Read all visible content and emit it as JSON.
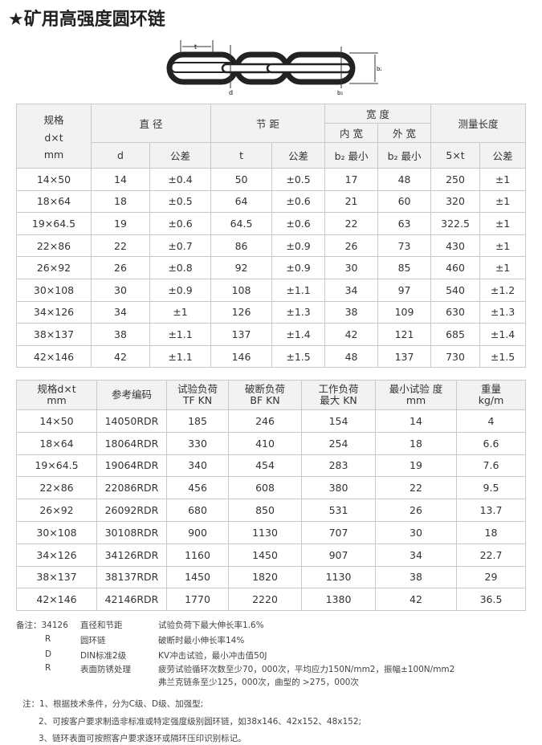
{
  "title": "★矿用高强度圆环链",
  "diagram": {
    "labels": {
      "t": "t",
      "d": "d",
      "b1": "b₁",
      "b2": "b₂"
    }
  },
  "table1": {
    "header": {
      "spec": [
        "规格",
        "d×t",
        "mm"
      ],
      "diameter": "直 径",
      "pitch": "节 距",
      "width": "宽 度",
      "inner": "内 宽",
      "outer": "外 宽",
      "measure": "测量长度",
      "sub": [
        "d",
        "公差",
        "t",
        "公差",
        "b₂ 最小",
        "b₂ 最小",
        "5×t",
        "公差"
      ]
    },
    "rows": [
      [
        "14×50",
        "14",
        "±0.4",
        "50",
        "±0.5",
        "17",
        "48",
        "250",
        "±1"
      ],
      [
        "18×64",
        "18",
        "±0.5",
        "64",
        "±0.6",
        "21",
        "60",
        "320",
        "±1"
      ],
      [
        "19×64.5",
        "19",
        "±0.6",
        "64.5",
        "±0.6",
        "22",
        "63",
        "322.5",
        "±1"
      ],
      [
        "22×86",
        "22",
        "±0.7",
        "86",
        "±0.9",
        "26",
        "73",
        "430",
        "±1"
      ],
      [
        "26×92",
        "26",
        "±0.8",
        "92",
        "±0.9",
        "30",
        "85",
        "460",
        "±1"
      ],
      [
        "30×108",
        "30",
        "±0.9",
        "108",
        "±1.1",
        "34",
        "97",
        "540",
        "±1.2"
      ],
      [
        "34×126",
        "34",
        "±1",
        "126",
        "±1.3",
        "38",
        "109",
        "630",
        "±1.3"
      ],
      [
        "38×137",
        "38",
        "±1.1",
        "137",
        "±1.4",
        "42",
        "121",
        "685",
        "±1.4"
      ],
      [
        "42×146",
        "42",
        "±1.1",
        "146",
        "±1.5",
        "48",
        "137",
        "730",
        "±1.5"
      ]
    ]
  },
  "table2": {
    "header": [
      [
        "规格d×t",
        "mm"
      ],
      [
        "参考编码"
      ],
      [
        "试验负荷",
        "TF  KN"
      ],
      [
        "破断负荷",
        "BF  KN"
      ],
      [
        "工作负荷",
        "最大 KN"
      ],
      [
        "最小试验  度",
        "mm"
      ],
      [
        "重量",
        "kg/m"
      ]
    ],
    "rows": [
      [
        "14×50",
        "14050RDR",
        "185",
        "246",
        "154",
        "14",
        "4"
      ],
      [
        "18×64",
        "18064RDR",
        "330",
        "410",
        "254",
        "18",
        "6.6"
      ],
      [
        "19×64.5",
        "19064RDR",
        "340",
        "454",
        "283",
        "19",
        "7.6"
      ],
      [
        "22×86",
        "22086RDR",
        "456",
        "608",
        "380",
        "22",
        "9.5"
      ],
      [
        "26×92",
        "26092RDR",
        "680",
        "850",
        "531",
        "26",
        "13.7"
      ],
      [
        "30×108",
        "30108RDR",
        "900",
        "1130",
        "707",
        "30",
        "18"
      ],
      [
        "34×126",
        "34126RDR",
        "1160",
        "1450",
        "907",
        "34",
        "22.7"
      ],
      [
        "38×137",
        "38137RDR",
        "1450",
        "1820",
        "1130",
        "38",
        "29"
      ],
      [
        "42×146",
        "42146RDR",
        "1770",
        "2220",
        "1380",
        "42",
        "36.5"
      ]
    ]
  },
  "remarks": [
    [
      "备注：34126",
      "直径和节距",
      "试验负荷下最大伸长率1.6%"
    ],
    [
      "R",
      "圆环链",
      "破断时最小伸长率14%"
    ],
    [
      "D",
      "DIN标准2级",
      "KV冲击试验，最小冲击值50J"
    ],
    [
      "R",
      "表面防锈处理",
      "疲劳试验循环次数至少70，000次，平均应力150N/mm2，振幅±100N/mm2"
    ],
    [
      "",
      "",
      "弗兰克链条至少125，000次，曲型的 >275，000次"
    ]
  ],
  "notes": [
    "注：1、根据技术条件，分为C级、D级、加强型;",
    "2、可按客户要求制造非标准或特定强度级别圆环链，如38x146、42x152、48x152;",
    "3、链环表面可按照客户要求逐环或隔环压印识别标记。"
  ]
}
